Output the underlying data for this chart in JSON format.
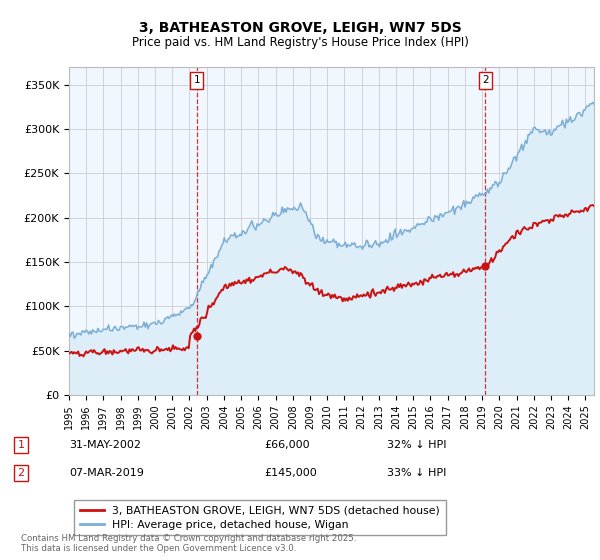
{
  "title": "3, BATHEASTON GROVE, LEIGH, WN7 5DS",
  "subtitle": "Price paid vs. HM Land Registry's House Price Index (HPI)",
  "ylim": [
    0,
    370000
  ],
  "xlim_start": 1995.0,
  "xlim_end": 2025.5,
  "yticks": [
    0,
    50000,
    100000,
    150000,
    200000,
    250000,
    300000,
    350000
  ],
  "ytick_labels": [
    "£0",
    "£50K",
    "£100K",
    "£150K",
    "£200K",
    "£250K",
    "£300K",
    "£350K"
  ],
  "hpi_color": "#7aaed6",
  "hpi_fill_color": "#ddeef8",
  "price_color": "#cc1111",
  "marker_color": "#cc1111",
  "background_color": "#f0f7ff",
  "grid_color": "#cccccc",
  "legend_label_price": "3, BATHEASTON GROVE, LEIGH, WN7 5DS (detached house)",
  "legend_label_hpi": "HPI: Average price, detached house, Wigan",
  "annotation1_label": "1",
  "annotation1_date": "31-MAY-2002",
  "annotation1_price": "£66,000",
  "annotation1_hpi": "32% ↓ HPI",
  "annotation2_label": "2",
  "annotation2_date": "07-MAR-2019",
  "annotation2_price": "£145,000",
  "annotation2_hpi": "33% ↓ HPI",
  "footnote": "Contains HM Land Registry data © Crown copyright and database right 2025.\nThis data is licensed under the Open Government Licence v3.0.",
  "sale1_x": 2002.42,
  "sale1_y": 66000,
  "sale2_x": 2019.18,
  "sale2_y": 145000
}
